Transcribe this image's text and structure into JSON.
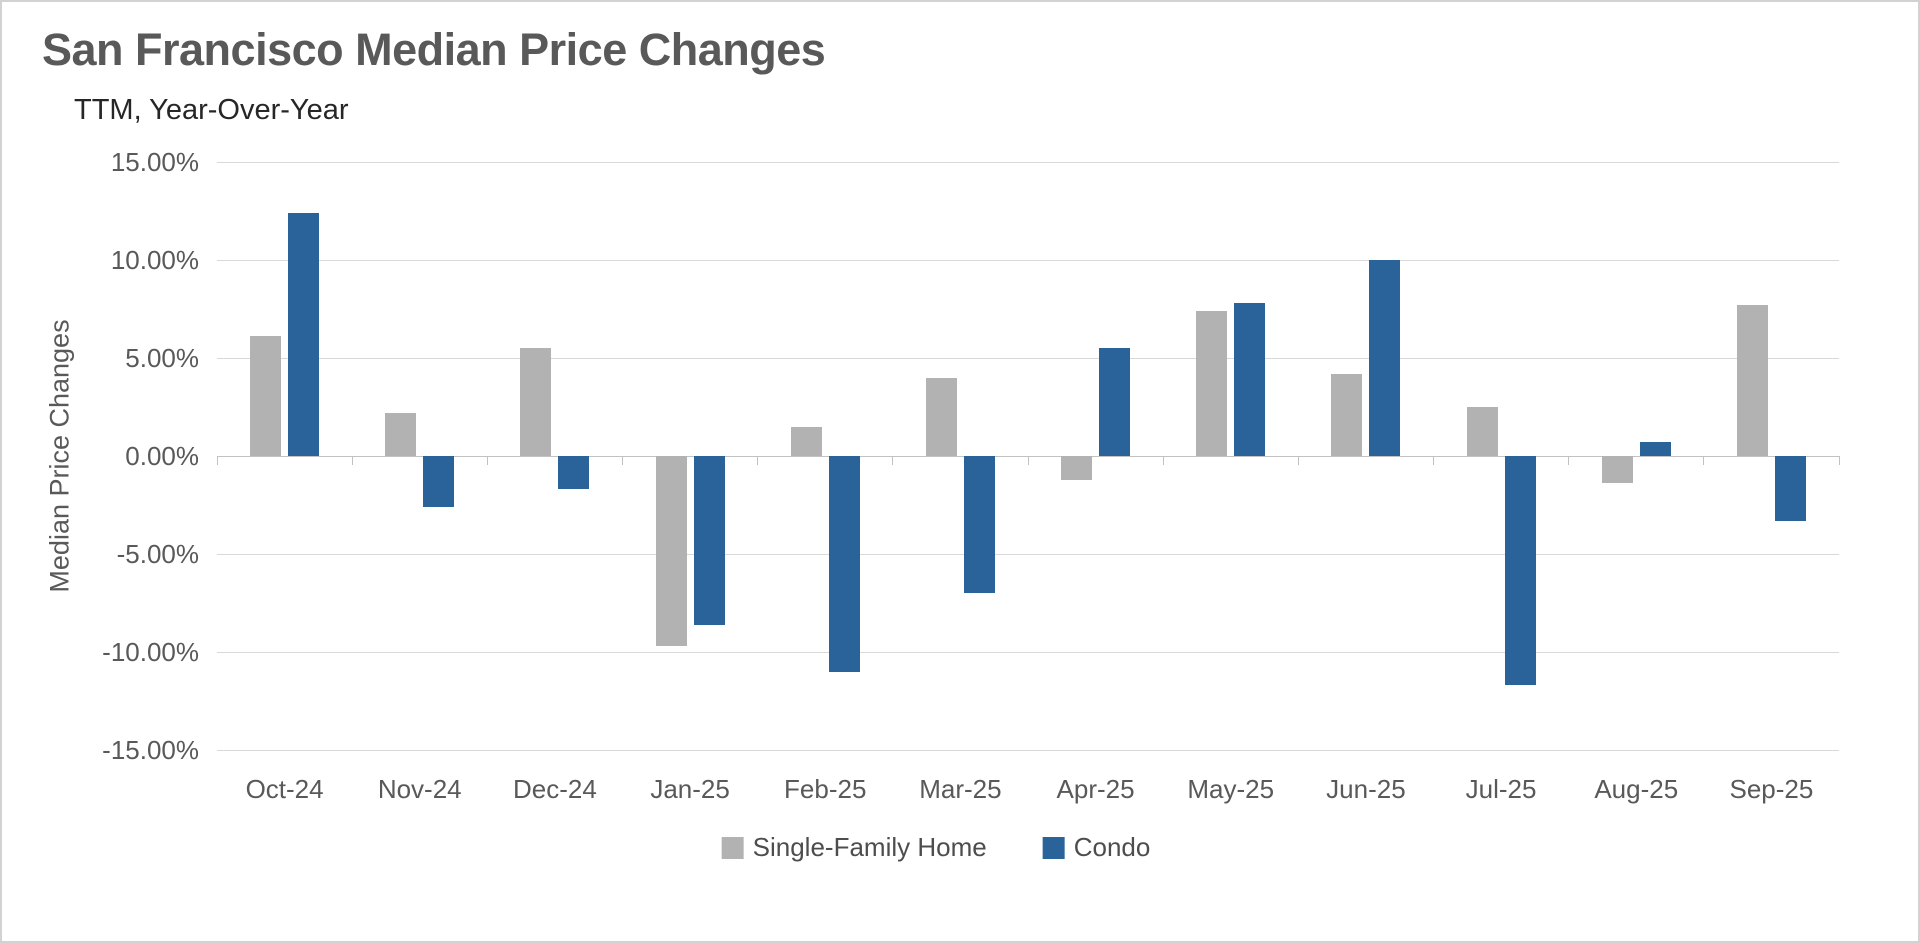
{
  "window": {
    "background": "#ffffff",
    "border_color": "#d2d2d2"
  },
  "header": {
    "title": "San Francisco Median Price Changes",
    "subtitle": "TTM, Year-Over-Year"
  },
  "chart_data": {
    "type": "bar",
    "title": "San Francisco Median Price Changes",
    "subtitle": "TTM, Year-Over-Year",
    "xlabel": "",
    "ylabel": "Median Price Changes",
    "ylim": [
      -15,
      15
    ],
    "ytick_step": 5,
    "ytick_labels": [
      "15.00%",
      "10.00%",
      "5.00%",
      "0.00%",
      "-5.00%",
      "-10.00%",
      "-15.00%"
    ],
    "grid": true,
    "legend_position": "bottom-center",
    "gridline_color": "#d9d9d9",
    "axis_color": "#c2c2c2",
    "categories": [
      "Oct-24",
      "Nov-24",
      "Dec-24",
      "Jan-25",
      "Feb-25",
      "Mar-25",
      "Apr-25",
      "May-25",
      "Jun-25",
      "Jul-25",
      "Aug-25",
      "Sep-25"
    ],
    "series": [
      {
        "name": "Single-Family Home",
        "color": "#b2b2b2",
        "values": [
          6.1,
          2.2,
          5.5,
          -9.7,
          1.5,
          4.0,
          -1.2,
          7.4,
          4.2,
          2.5,
          -1.4,
          7.7
        ]
      },
      {
        "name": "Condo",
        "color": "#2a6399",
        "values": [
          12.4,
          -2.6,
          -1.7,
          -8.6,
          -11.0,
          -7.0,
          5.5,
          7.8,
          10.0,
          -11.7,
          0.7,
          -3.3
        ]
      }
    ]
  }
}
